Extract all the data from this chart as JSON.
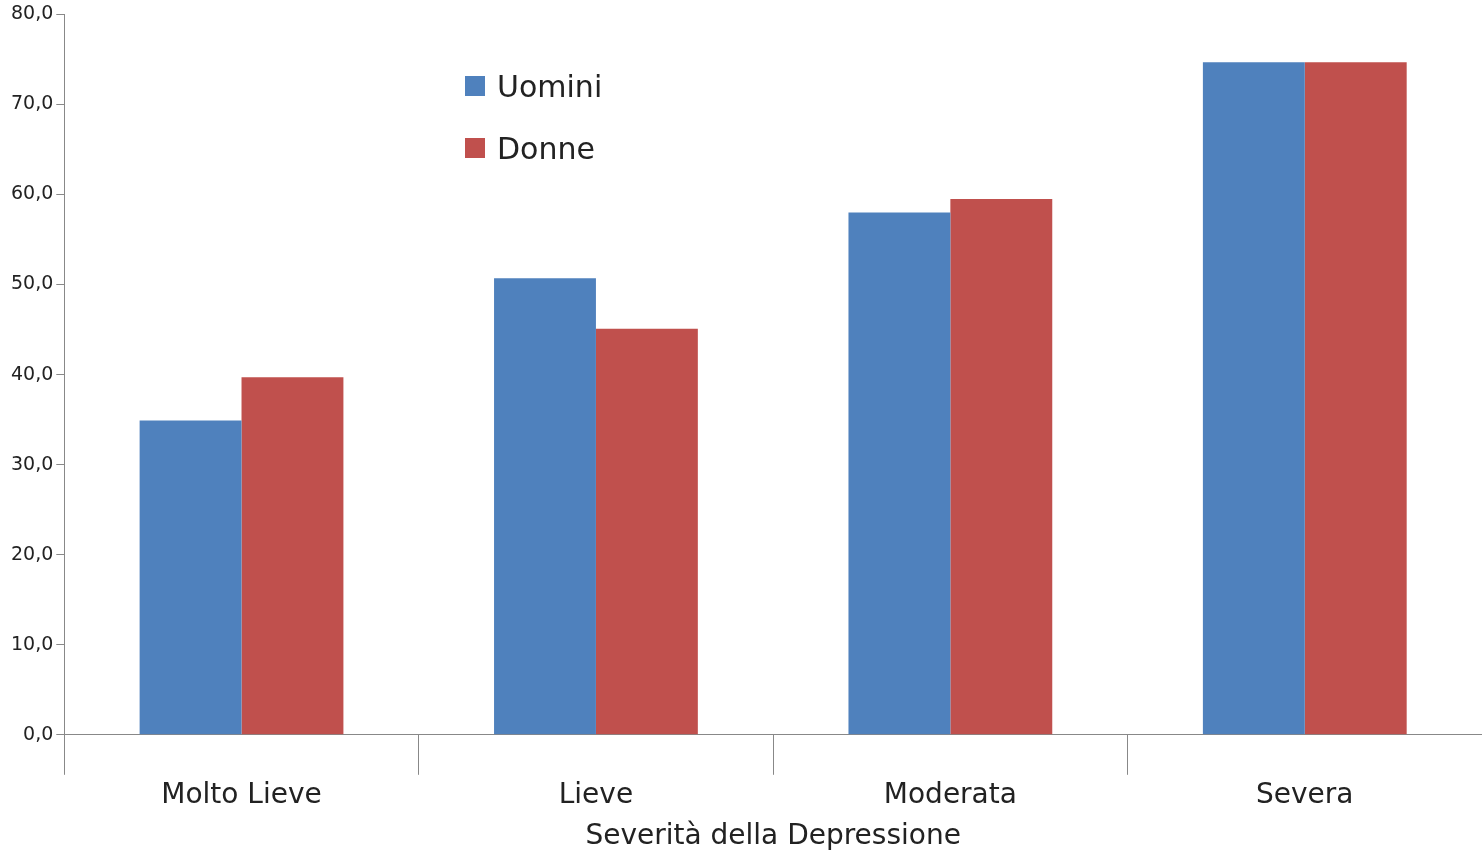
{
  "chart_data": {
    "type": "bar",
    "xlabel": "Severità della Depressione",
    "categories": [
      "Molto Lieve",
      "Lieve",
      "Moderata",
      "Severa"
    ],
    "series": [
      {
        "name": "Uomini",
        "color": "#4f81bd",
        "values": [
          34.9,
          50.7,
          58.0,
          74.7
        ]
      },
      {
        "name": "Donne",
        "color": "#c0504d",
        "values": [
          39.7,
          45.1,
          59.5,
          74.7
        ]
      }
    ],
    "ylim": [
      0,
      80
    ],
    "yticks": [
      {
        "value": 0,
        "label": "0,0"
      },
      {
        "value": 10,
        "label": "10,0"
      },
      {
        "value": 20,
        "label": "20,0"
      },
      {
        "value": 30,
        "label": "30,0"
      },
      {
        "value": 40,
        "label": "40,0"
      },
      {
        "value": 50,
        "label": "50,0"
      },
      {
        "value": 60,
        "label": "60,0"
      },
      {
        "value": 70,
        "label": "70,0"
      },
      {
        "value": 80,
        "label": "80,0"
      }
    ],
    "grid": false,
    "legend": "top left"
  }
}
